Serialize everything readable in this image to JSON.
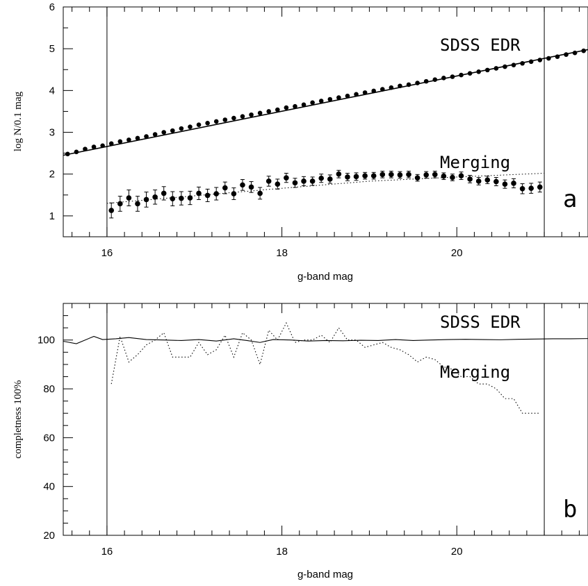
{
  "chart_data": [
    {
      "type": "scatter",
      "panel": "a",
      "xlabel": "g-band mag",
      "ylabel": "log N/0.1 mag",
      "xlim": [
        15.5,
        21.5
      ],
      "ylim": [
        0.5,
        6
      ],
      "xticks": [
        16,
        18,
        20
      ],
      "yticks": [
        1,
        2,
        3,
        4,
        5,
        6
      ],
      "vlines": [
        16,
        21
      ],
      "annotations": {
        "sdss": "SDSS EDR",
        "merging": "Merging",
        "panel": "a"
      },
      "series": [
        {
          "name": "SDSS EDR",
          "x": [
            15.55,
            15.65,
            15.75,
            15.85,
            15.95,
            16.05,
            16.15,
            16.25,
            16.35,
            16.45,
            16.55,
            16.65,
            16.75,
            16.85,
            16.95,
            17.05,
            17.15,
            17.25,
            17.35,
            17.45,
            17.55,
            17.65,
            17.75,
            17.85,
            17.95,
            18.05,
            18.15,
            18.25,
            18.35,
            18.45,
            18.55,
            18.65,
            18.75,
            18.85,
            18.95,
            19.05,
            19.15,
            19.25,
            19.35,
            19.45,
            19.55,
            19.65,
            19.75,
            19.85,
            19.95,
            20.05,
            20.15,
            20.25,
            20.35,
            20.45,
            20.55,
            20.65,
            20.75,
            20.85,
            20.95,
            21.05,
            21.15,
            21.25,
            21.35,
            21.45
          ],
          "y": [
            2.48,
            2.53,
            2.6,
            2.65,
            2.68,
            2.73,
            2.78,
            2.82,
            2.86,
            2.9,
            2.95,
            3.0,
            3.04,
            3.09,
            3.13,
            3.18,
            3.22,
            3.26,
            3.3,
            3.34,
            3.38,
            3.42,
            3.46,
            3.5,
            3.54,
            3.59,
            3.62,
            3.66,
            3.71,
            3.75,
            3.79,
            3.83,
            3.87,
            3.91,
            3.95,
            3.99,
            4.03,
            4.07,
            4.11,
            4.14,
            4.18,
            4.22,
            4.26,
            4.3,
            4.33,
            4.37,
            4.41,
            4.45,
            4.49,
            4.53,
            4.57,
            4.61,
            4.65,
            4.69,
            4.73,
            4.77,
            4.81,
            4.86,
            4.9,
            4.95
          ],
          "err": 0.04,
          "fit_line": {
            "x": [
              15.5,
              21.5
            ],
            "y": [
              2.45,
              4.98
            ]
          }
        },
        {
          "name": "Merging",
          "x": [
            16.05,
            16.15,
            16.25,
            16.35,
            16.45,
            16.55,
            16.65,
            16.75,
            16.85,
            16.95,
            17.05,
            17.15,
            17.25,
            17.35,
            17.45,
            17.55,
            17.65,
            17.75,
            17.85,
            17.95,
            18.05,
            18.15,
            18.25,
            18.35,
            18.45,
            18.55,
            18.65,
            18.75,
            18.85,
            18.95,
            19.05,
            19.15,
            19.25,
            19.35,
            19.45,
            19.55,
            19.65,
            19.75,
            19.85,
            19.95,
            20.05,
            20.15,
            20.25,
            20.35,
            20.45,
            20.55,
            20.65,
            20.75,
            20.85,
            20.95
          ],
          "y": [
            1.13,
            1.29,
            1.43,
            1.29,
            1.39,
            1.45,
            1.54,
            1.41,
            1.42,
            1.43,
            1.54,
            1.49,
            1.53,
            1.67,
            1.53,
            1.74,
            1.69,
            1.54,
            1.83,
            1.76,
            1.91,
            1.79,
            1.83,
            1.83,
            1.9,
            1.88,
            2.0,
            1.93,
            1.94,
            1.96,
            1.96,
            1.99,
            1.99,
            1.98,
            1.99,
            1.91,
            1.98,
            1.99,
            1.95,
            1.92,
            1.96,
            1.88,
            1.83,
            1.86,
            1.82,
            1.76,
            1.78,
            1.65,
            1.66,
            1.69
          ],
          "err": [
            0.18,
            0.18,
            0.19,
            0.18,
            0.18,
            0.17,
            0.16,
            0.17,
            0.16,
            0.16,
            0.15,
            0.15,
            0.15,
            0.14,
            0.14,
            0.13,
            0.13,
            0.14,
            0.12,
            0.12,
            0.11,
            0.11,
            0.11,
            0.1,
            0.1,
            0.1,
            0.09,
            0.09,
            0.09,
            0.08,
            0.08,
            0.08,
            0.08,
            0.08,
            0.08,
            0.08,
            0.08,
            0.08,
            0.08,
            0.08,
            0.09,
            0.09,
            0.09,
            0.09,
            0.1,
            0.1,
            0.11,
            0.12,
            0.12,
            0.12
          ],
          "model_line": {
            "x": [
              16.0,
              17.0,
              18.0,
              19.0,
              20.0,
              21.0
            ],
            "y": [
              1.3,
              1.48,
              1.66,
              1.83,
              1.93,
              2.02
            ]
          }
        }
      ]
    },
    {
      "type": "line",
      "panel": "b",
      "xlabel": "g-band mag",
      "ylabel": "completness 100%",
      "xlim": [
        15.5,
        21.5
      ],
      "ylim": [
        20,
        115
      ],
      "xticks": [
        16,
        18,
        20
      ],
      "yticks": [
        20,
        40,
        60,
        80,
        100
      ],
      "vlines": [
        16,
        21
      ],
      "annotations": {
        "sdss": "SDSS EDR",
        "merging": "Merging",
        "panel": "b"
      },
      "series": [
        {
          "name": "SDSS EDR",
          "style": "solid",
          "x": [
            15.5,
            15.65,
            15.85,
            15.95,
            16.1,
            16.25,
            16.45,
            16.65,
            16.85,
            17.05,
            17.25,
            17.45,
            17.6,
            17.75,
            17.9,
            18.1,
            18.3,
            18.5,
            18.7,
            18.9,
            19.1,
            19.3,
            19.5,
            19.7,
            19.9,
            20.1,
            20.3,
            20.5,
            20.7,
            20.9,
            21.1,
            21.3,
            21.5
          ],
          "y": [
            99.5,
            98.5,
            101.5,
            100.2,
            100.5,
            101.0,
            100.2,
            100.0,
            99.8,
            100.2,
            99.6,
            100.5,
            99.8,
            99.0,
            100.2,
            100.0,
            99.6,
            99.8,
            99.7,
            99.9,
            99.8,
            100.2,
            99.8,
            100.0,
            100.2,
            100.3,
            100.2,
            100.1,
            100.3,
            100.4,
            100.5,
            100.5,
            100.6
          ]
        },
        {
          "name": "Merging",
          "style": "dotted",
          "x": [
            16.05,
            16.15,
            16.25,
            16.35,
            16.45,
            16.55,
            16.65,
            16.75,
            16.85,
            16.95,
            17.05,
            17.15,
            17.25,
            17.35,
            17.45,
            17.55,
            17.65,
            17.75,
            17.85,
            17.95,
            18.05,
            18.15,
            18.25,
            18.35,
            18.45,
            18.55,
            18.65,
            18.75,
            18.85,
            18.95,
            19.05,
            19.15,
            19.25,
            19.35,
            19.45,
            19.55,
            19.65,
            19.75,
            19.85,
            19.95,
            20.05,
            20.15,
            20.25,
            20.35,
            20.45,
            20.55,
            20.65,
            20.75,
            20.85,
            20.95
          ],
          "y": [
            82,
            101.5,
            91,
            94,
            98,
            100,
            103,
            93,
            93,
            93,
            99,
            94,
            96,
            102,
            93,
            103,
            100,
            90,
            104,
            100,
            107,
            99,
            100,
            100,
            102,
            99,
            105,
            100,
            100,
            97,
            98,
            99,
            97,
            96,
            94,
            91,
            93,
            92,
            89,
            88,
            85,
            85,
            82,
            82,
            80,
            76,
            76,
            70,
            70,
            70
          ]
        }
      ]
    }
  ]
}
